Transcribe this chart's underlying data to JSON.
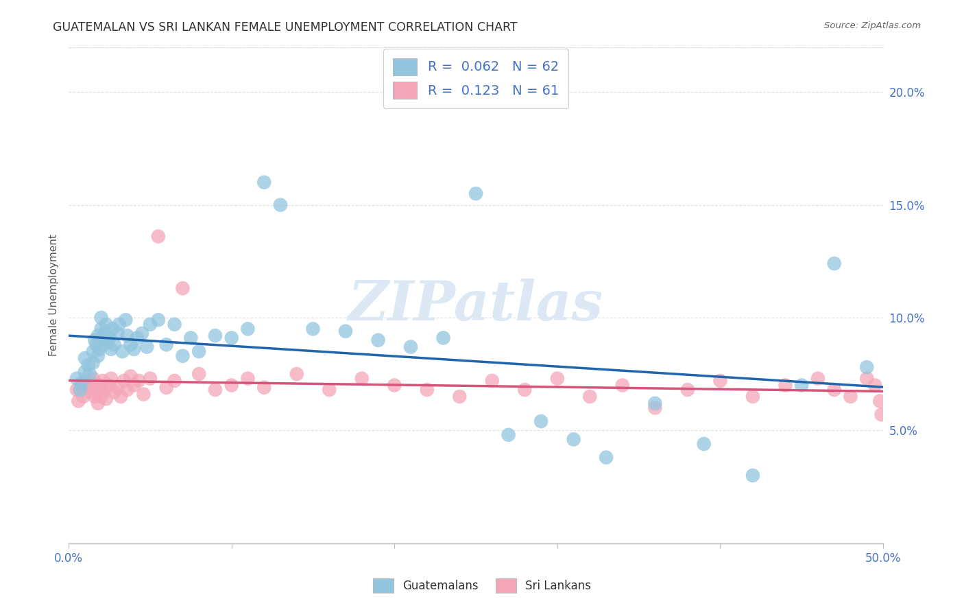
{
  "title": "GUATEMALAN VS SRI LANKAN FEMALE UNEMPLOYMENT CORRELATION CHART",
  "source": "Source: ZipAtlas.com",
  "ylabel": "Female Unemployment",
  "xlim": [
    0.0,
    0.5
  ],
  "ylim": [
    0.0,
    0.22
  ],
  "xticks": [
    0.0,
    0.1,
    0.2,
    0.3,
    0.4,
    0.5
  ],
  "xticklabels": [
    "0.0%",
    "",
    "",
    "",
    "",
    "50.0%"
  ],
  "yticks": [
    0.05,
    0.1,
    0.15,
    0.2
  ],
  "yticklabels": [
    "5.0%",
    "10.0%",
    "15.0%",
    "20.0%"
  ],
  "legend_R1": "0.062",
  "legend_N1": "62",
  "legend_R2": "0.123",
  "legend_N2": "61",
  "color_blue": "#92c5de",
  "color_pink": "#f4a6b8",
  "line_blue": "#2166ac",
  "line_pink": "#d6537a",
  "tick_color": "#4472c4",
  "title_color": "#333333",
  "source_color": "#666666",
  "watermark": "ZIPatlas",
  "watermark_color": "#dce9f5",
  "background_color": "#ffffff",
  "grid_color": "#e0e0e0",
  "guatemalan_x": [
    0.005,
    0.007,
    0.008,
    0.01,
    0.01,
    0.012,
    0.013,
    0.015,
    0.015,
    0.016,
    0.017,
    0.018,
    0.018,
    0.019,
    0.02,
    0.02,
    0.021,
    0.022,
    0.023,
    0.024,
    0.025,
    0.026,
    0.027,
    0.028,
    0.03,
    0.031,
    0.033,
    0.035,
    0.036,
    0.038,
    0.04,
    0.042,
    0.045,
    0.048,
    0.05,
    0.055,
    0.06,
    0.065,
    0.07,
    0.075,
    0.08,
    0.09,
    0.1,
    0.11,
    0.12,
    0.13,
    0.15,
    0.17,
    0.19,
    0.21,
    0.23,
    0.25,
    0.27,
    0.29,
    0.31,
    0.33,
    0.36,
    0.39,
    0.42,
    0.45,
    0.47,
    0.49
  ],
  "guatemalan_y": [
    0.073,
    0.068,
    0.071,
    0.082,
    0.076,
    0.079,
    0.075,
    0.085,
    0.08,
    0.09,
    0.088,
    0.083,
    0.092,
    0.086,
    0.095,
    0.1,
    0.088,
    0.093,
    0.097,
    0.089,
    0.091,
    0.086,
    0.095,
    0.088,
    0.093,
    0.097,
    0.085,
    0.099,
    0.092,
    0.088,
    0.086,
    0.091,
    0.093,
    0.087,
    0.097,
    0.099,
    0.088,
    0.097,
    0.083,
    0.091,
    0.085,
    0.092,
    0.091,
    0.095,
    0.16,
    0.15,
    0.095,
    0.094,
    0.09,
    0.087,
    0.091,
    0.155,
    0.048,
    0.054,
    0.046,
    0.038,
    0.062,
    0.044,
    0.03,
    0.07,
    0.124,
    0.078
  ],
  "srilankan_x": [
    0.005,
    0.006,
    0.008,
    0.009,
    0.01,
    0.011,
    0.013,
    0.014,
    0.015,
    0.016,
    0.017,
    0.018,
    0.019,
    0.02,
    0.021,
    0.022,
    0.023,
    0.025,
    0.026,
    0.028,
    0.03,
    0.032,
    0.034,
    0.036,
    0.038,
    0.04,
    0.043,
    0.046,
    0.05,
    0.055,
    0.06,
    0.065,
    0.07,
    0.08,
    0.09,
    0.1,
    0.11,
    0.12,
    0.14,
    0.16,
    0.18,
    0.2,
    0.22,
    0.24,
    0.26,
    0.28,
    0.3,
    0.32,
    0.34,
    0.36,
    0.38,
    0.4,
    0.42,
    0.44,
    0.46,
    0.47,
    0.48,
    0.49,
    0.495,
    0.498,
    0.499
  ],
  "srilankan_y": [
    0.068,
    0.063,
    0.07,
    0.065,
    0.072,
    0.069,
    0.067,
    0.071,
    0.073,
    0.065,
    0.068,
    0.062,
    0.07,
    0.065,
    0.072,
    0.068,
    0.064,
    0.07,
    0.073,
    0.067,
    0.069,
    0.065,
    0.072,
    0.068,
    0.074,
    0.07,
    0.072,
    0.066,
    0.073,
    0.136,
    0.069,
    0.072,
    0.113,
    0.075,
    0.068,
    0.07,
    0.073,
    0.069,
    0.075,
    0.068,
    0.073,
    0.07,
    0.068,
    0.065,
    0.072,
    0.068,
    0.073,
    0.065,
    0.07,
    0.06,
    0.068,
    0.072,
    0.065,
    0.07,
    0.073,
    0.068,
    0.065,
    0.073,
    0.07,
    0.063,
    0.057
  ]
}
